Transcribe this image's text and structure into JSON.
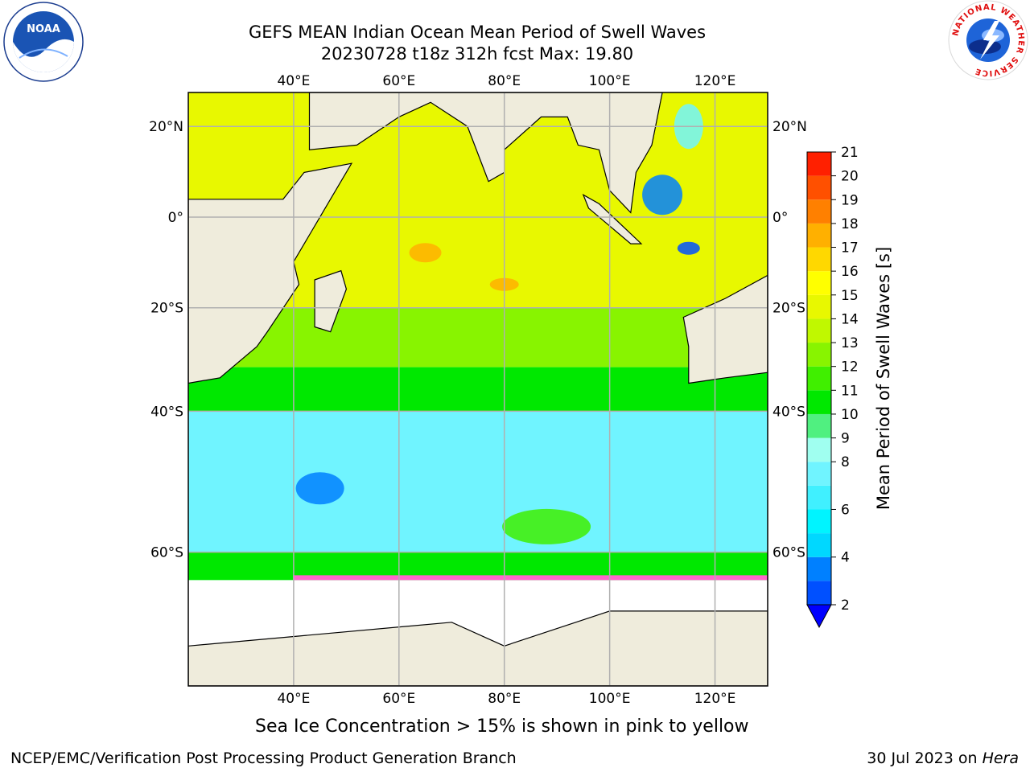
{
  "header": {
    "title_line1": "GEFS MEAN Indian Ocean Mean Period of Swell Waves",
    "title_line2": "20230728 t18z 312h fcst   Max: 19.80"
  },
  "logos": {
    "left": {
      "icon": "noaa-logo",
      "text": "NOAA"
    },
    "right": {
      "icon": "nws-logo",
      "ring_text": "NATIONAL WEATHER SERVICE"
    }
  },
  "map": {
    "region": "Indian Ocean",
    "lon_range": [
      20,
      130
    ],
    "lat_range": [
      -72,
      27
    ],
    "projection": "mercator",
    "grid": true,
    "top_lon_labels": [
      "40°E",
      "60°E",
      "80°E",
      "100°E",
      "120°E"
    ],
    "bottom_lon_labels": [
      "40°E",
      "60°E",
      "80°E",
      "100°E",
      "120°E"
    ],
    "left_lat_labels": [
      "20°N",
      "0°",
      "20°S",
      "40°S",
      "60°S"
    ],
    "right_lat_labels": [
      "20°N",
      "0°",
      "20°S",
      "40°S",
      "60°S"
    ],
    "colors": {
      "land": "#efecdc",
      "ice_free": "#ffffff",
      "grid": "#b0b0b0"
    }
  },
  "colorbar": {
    "label": "Mean Period of Swell Waves [s]",
    "min": 2,
    "max": 21,
    "extend": "min",
    "extend_color": "#0000ff",
    "levels": [
      2,
      3,
      4,
      5,
      6,
      7,
      8,
      9,
      10,
      11,
      12,
      13,
      14,
      15,
      16,
      17,
      18,
      19,
      20,
      21
    ],
    "tick_labels": [
      "2",
      "4",
      "6",
      "8",
      "9",
      "10",
      "11",
      "12",
      "13",
      "14",
      "15",
      "16",
      "17",
      "18",
      "19",
      "20",
      "21"
    ],
    "colors": [
      "#0050ff",
      "#0080ff",
      "#00d8ff",
      "#00f4ff",
      "#40f0ff",
      "#70f4ff",
      "#a0fff0",
      "#50f080",
      "#00e800",
      "#40ef00",
      "#88f400",
      "#c0f800",
      "#e8f800",
      "#ffff00",
      "#ffd800",
      "#ffb000",
      "#ff8000",
      "#ff5000",
      "#ff2000",
      "#ff0000"
    ]
  },
  "footer": {
    "sea_ice_note": "Sea Ice Concentration > 15% is shown in pink to yellow",
    "branch": "NCEP/EMC/Verification Post Processing Product Generation Branch",
    "date": "30 Jul 2023 on ",
    "host": "Hera"
  }
}
